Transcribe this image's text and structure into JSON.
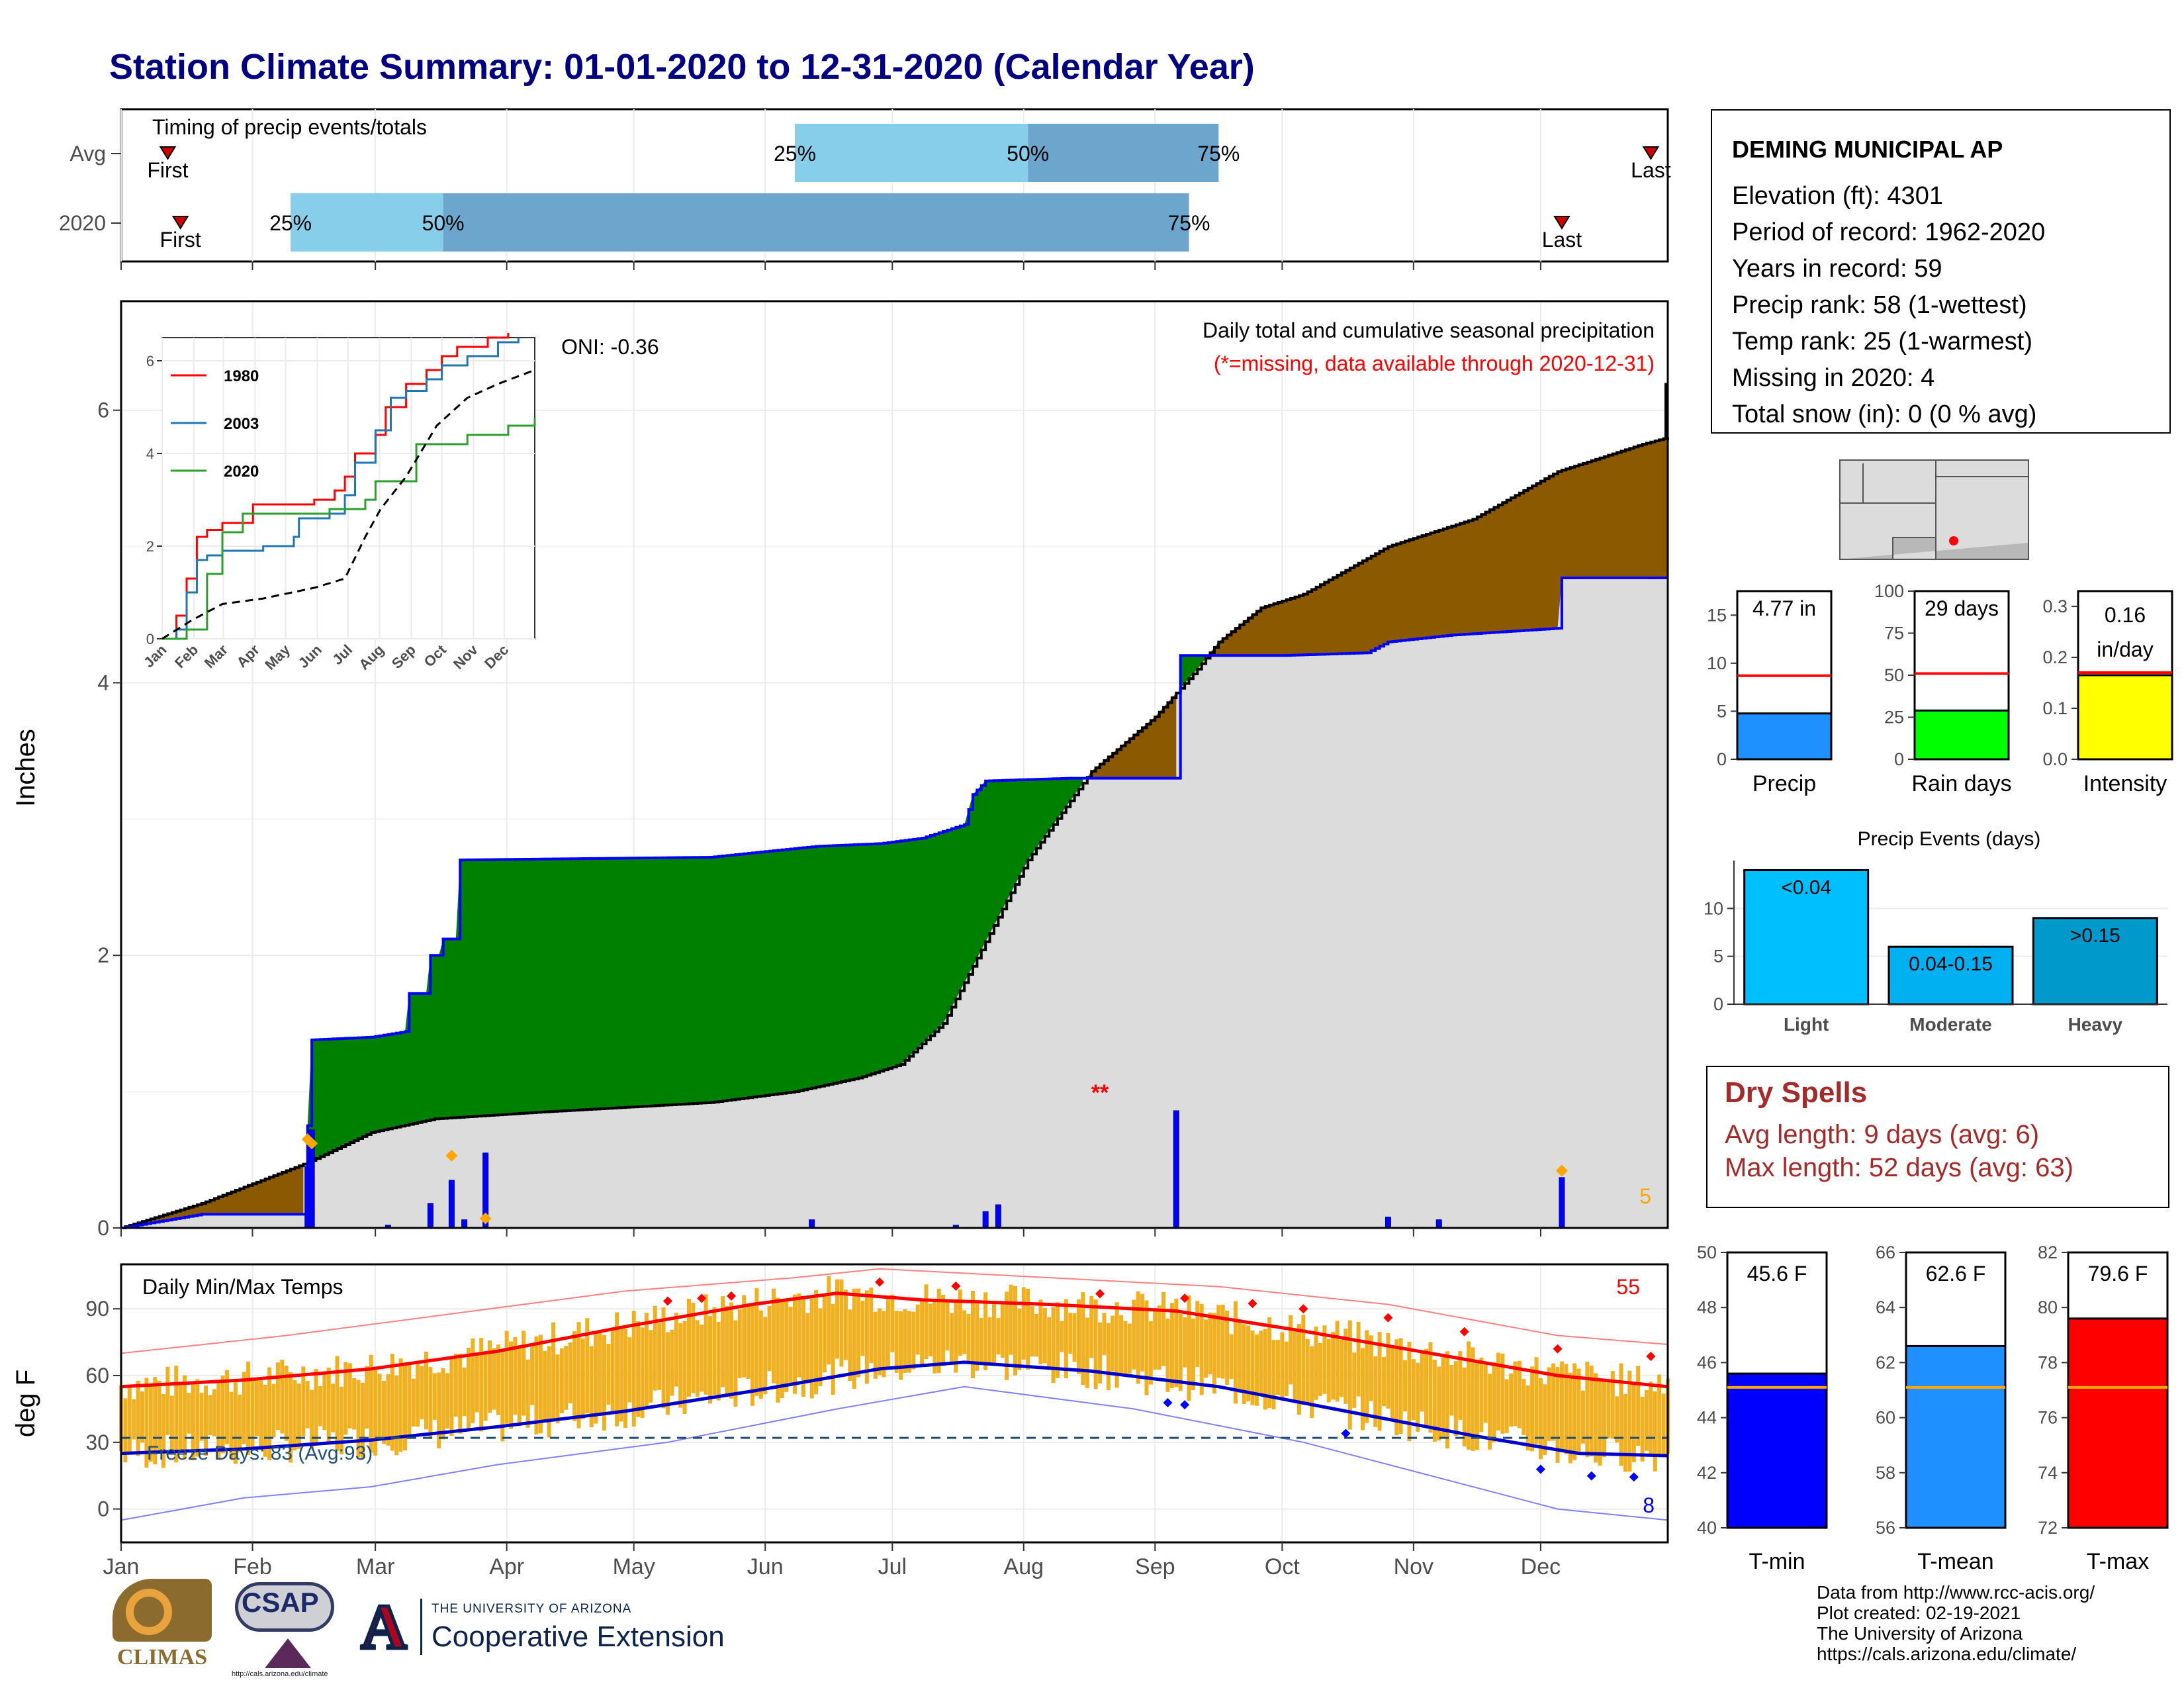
{
  "page": {
    "title": "Station Climate Summary: 01-01-2020 to 12-31-2020 (Calendar Year)"
  },
  "timing_panel": {
    "label": "Timing of precip events/totals",
    "rows": [
      {
        "name": "Avg",
        "first_doy": 12,
        "last_doy": 362,
        "p25_doy": 160,
        "p50_doy": 215,
        "p75_doy": 260,
        "labels": [
          "First",
          "Last",
          "25%",
          "50%",
          "75%"
        ]
      },
      {
        "name": "2020",
        "first_doy": 15,
        "last_doy": 341,
        "p25_doy": 41,
        "p50_doy": 77,
        "p75_doy": 253,
        "labels": [
          "First",
          "Last",
          "25%",
          "50%",
          "75%"
        ]
      }
    ]
  },
  "month_labels": [
    "Jan",
    "Feb",
    "Mar",
    "Apr",
    "May",
    "Jun",
    "Jul",
    "Aug",
    "Sep",
    "Oct",
    "Nov",
    "Dec"
  ],
  "precip_panel": {
    "title": "Daily total and cumulative seasonal precipitation",
    "subtitle": "(*=missing, data available through 2020-12-31)",
    "ylabel": "Inches",
    "yticks": [
      "0",
      "2",
      "4",
      "6"
    ],
    "oni": "ONI: -0.36",
    "missing_marker": "**",
    "count_label": "5",
    "colors": {
      "normal": "#dcdcdc",
      "above": "#008000",
      "below": "#8B5A00",
      "line": "#0000ff",
      "daily": "#0000ff",
      "record": "#FFA500"
    }
  },
  "inset": {
    "series": [
      "1980",
      "2003",
      "2020"
    ],
    "colors": [
      "#ff0000",
      "#1f77b4",
      "#2ca02c"
    ],
    "yticks": [
      "0",
      "2",
      "4",
      "6"
    ],
    "xticks": [
      "Jan",
      "Feb",
      "Mar",
      "Apr",
      "May",
      "Jun",
      "Jul",
      "Aug",
      "Sep",
      "Oct",
      "Nov",
      "Dec"
    ]
  },
  "temp_panel": {
    "title": "Daily Min/Max Temps",
    "ylabel": "deg F",
    "yticks": [
      "0",
      "30",
      "60",
      "90"
    ],
    "freeze_label": "Freeze Days: 83 (Avg:93)",
    "max_count": "55",
    "min_count": "8"
  },
  "station": {
    "name": "DEMING MUNICIPAL AP",
    "lines": [
      "Elevation (ft): 4301",
      "Period of record: 1962-2020",
      "Years in record: 59",
      "Precip rank: 58 (1-wettest)",
      "Temp rank: 25 (1-warmest)",
      "Missing in 2020: 4",
      "Total snow (in): 0 (0 % avg)"
    ]
  },
  "gauges_precip": [
    {
      "label": "Precip",
      "value_text": "4.77 in",
      "value": 4.77,
      "avg": 8.7,
      "max": 17.5,
      "ticks": [
        "0",
        "5",
        "10",
        "15"
      ],
      "tick_vals": [
        0,
        5,
        10,
        15
      ],
      "color": "#1E90FF"
    },
    {
      "label": "Rain days",
      "value_text": "29 days",
      "value": 29,
      "avg": 51,
      "max": 100,
      "ticks": [
        "0",
        "25",
        "50",
        "75",
        "100"
      ],
      "tick_vals": [
        0,
        25,
        50,
        75,
        100
      ],
      "color": "#00FF00"
    },
    {
      "label": "Intensity",
      "value_text": "0.16 in/day",
      "value_lines": [
        "0.16",
        "in/day"
      ],
      "value": 0.165,
      "avg": 0.17,
      "max": 0.33,
      "ticks": [
        "0.0",
        "0.1",
        "0.2",
        "0.3"
      ],
      "tick_vals": [
        0,
        0.1,
        0.2,
        0.3
      ],
      "color": "#FFFF00"
    }
  ],
  "precip_events": {
    "title": "Precip Events (days)",
    "yticks": [
      "0",
      "5",
      "10"
    ],
    "bars": [
      {
        "category": "Light",
        "label": "<0.04",
        "value": 14,
        "color": "#00BFFF"
      },
      {
        "category": "Moderate",
        "label": "0.04-0.15",
        "value": 6,
        "color": "#00B0F0"
      },
      {
        "category": "Heavy",
        "label": ">0.15",
        "value": 9,
        "color": "#0099CC"
      }
    ]
  },
  "dry_spells": {
    "title": "Dry Spells",
    "avg_length": "Avg length: 9 days (avg: 6)",
    "max_length": "Max length: 52 days (avg: 63)"
  },
  "gauges_temp": [
    {
      "label": "T-min",
      "value_text": "45.6 F",
      "value": 45.6,
      "avg": 45.1,
      "min": 40,
      "max": 50,
      "ticks": [
        "40",
        "42",
        "44",
        "46",
        "48",
        "50"
      ],
      "tick_vals": [
        40,
        42,
        44,
        46,
        48,
        50
      ],
      "color": "#0000FF"
    },
    {
      "label": "T-mean",
      "value_text": "62.6 F",
      "value": 62.6,
      "avg": 61.1,
      "min": 56,
      "max": 66,
      "ticks": [
        "56",
        "58",
        "60",
        "62",
        "64",
        "66"
      ],
      "tick_vals": [
        56,
        58,
        60,
        62,
        64,
        66
      ],
      "color": "#1E90FF"
    },
    {
      "label": "T-max",
      "value_text": "79.6 F",
      "value": 79.6,
      "avg": 77.1,
      "min": 72,
      "max": 82,
      "ticks": [
        "72",
        "74",
        "76",
        "78",
        "80",
        "82"
      ],
      "tick_vals": [
        72,
        74,
        76,
        78,
        80,
        82
      ],
      "color": "#FF0000"
    }
  ],
  "credits": {
    "lines": [
      "Data from http://www.rcc-acis.org/",
      "Plot created: 02-19-2021",
      "The University of Arizona",
      "https://cals.arizona.edu/climate/"
    ]
  },
  "logos": {
    "climas": "CLIMAS",
    "csap": "CSAP",
    "csap_url": "http://cals.arizona.edu/climate",
    "ua_small": "THE UNIVERSITY OF ARIZONA",
    "ua_big": "Cooperative Extension",
    "ua_letter": "A"
  },
  "chart_data": [
    {
      "type": "area",
      "title": "Daily total and cumulative seasonal precipitation",
      "ylabel": "Inches",
      "ylim": [
        0,
        6.8
      ],
      "x_unit": "day of year",
      "series": [
        {
          "name": "2020 cumulative",
          "points": [
            [
              1,
              0
            ],
            [
              20,
              0.1
            ],
            [
              44,
              0.1
            ],
            [
              45,
              0.75
            ],
            [
              46,
              1.38
            ],
            [
              60,
              1.4
            ],
            [
              68,
              1.44
            ],
            [
              68,
              1.72
            ],
            [
              73,
              1.72
            ],
            [
              73,
              2.0
            ],
            [
              76,
              2.0
            ],
            [
              76,
              2.12
            ],
            [
              80,
              2.12
            ],
            [
              80,
              2.7
            ],
            [
              140,
              2.72
            ],
            [
              165,
              2.8
            ],
            [
              180,
              2.82
            ],
            [
              190,
              2.86
            ],
            [
              200,
              2.96
            ],
            [
              202,
              3.18
            ],
            [
              205,
              3.28
            ],
            [
              225,
              3.3
            ],
            [
              230,
              3.3
            ],
            [
              250,
              3.3
            ],
            [
              251,
              4.2
            ],
            [
              265,
              4.2
            ],
            [
              275,
              4.2
            ],
            [
              295,
              4.22
            ],
            [
              300,
              4.3
            ],
            [
              315,
              4.35
            ],
            [
              340,
              4.4
            ],
            [
              341,
              4.77
            ],
            [
              366,
              4.77
            ]
          ]
        },
        {
          "name": "Normal cumulative",
          "points": [
            [
              1,
              0
            ],
            [
              20,
              0.18
            ],
            [
              45,
              0.48
            ],
            [
              60,
              0.7
            ],
            [
              75,
              0.8
            ],
            [
              100,
              0.85
            ],
            [
              140,
              0.92
            ],
            [
              160,
              1.0
            ],
            [
              175,
              1.1
            ],
            [
              185,
              1.2
            ],
            [
              195,
              1.5
            ],
            [
              205,
              2.1
            ],
            [
              215,
              2.7
            ],
            [
              230,
              3.35
            ],
            [
              245,
              3.75
            ],
            [
              255,
              4.1
            ],
            [
              260,
              4.3
            ],
            [
              270,
              4.55
            ],
            [
              280,
              4.65
            ],
            [
              300,
              5.0
            ],
            [
              320,
              5.2
            ],
            [
              340,
              5.55
            ],
            [
              360,
              5.75
            ],
            [
              366,
              5.8
            ]
          ]
        }
      ],
      "daily_precip": [
        [
          45,
          0.45
        ],
        [
          46,
          0.72
        ],
        [
          64,
          0.02
        ],
        [
          74,
          0.18
        ],
        [
          79,
          0.35
        ],
        [
          82,
          0.06
        ],
        [
          87,
          0.55
        ],
        [
          164,
          0.06
        ],
        [
          198,
          0.02
        ],
        [
          205,
          0.12
        ],
        [
          208,
          0.17
        ],
        [
          250,
          0.86
        ],
        [
          300,
          0.08
        ],
        [
          312,
          0.06
        ],
        [
          341,
          0.37
        ]
      ]
    },
    {
      "type": "line",
      "title": "",
      "ylim": [
        0,
        6.5
      ],
      "series": [
        {
          "name": "1980",
          "points": [
            [
              1,
              0
            ],
            [
              15,
              0.5
            ],
            [
              25,
              1.3
            ],
            [
              35,
              2.2
            ],
            [
              45,
              2.35
            ],
            [
              60,
              2.5
            ],
            [
              90,
              2.9
            ],
            [
              150,
              3.0
            ],
            [
              170,
              3.2
            ],
            [
              180,
              3.5
            ],
            [
              190,
              4.0
            ],
            [
              210,
              4.4
            ],
            [
              220,
              5.0
            ],
            [
              240,
              5.5
            ],
            [
              260,
              5.8
            ],
            [
              275,
              6.1
            ],
            [
              290,
              6.3
            ],
            [
              320,
              6.5
            ],
            [
              340,
              6.6
            ]
          ]
        },
        {
          "name": "2003",
          "points": [
            [
              1,
              0
            ],
            [
              15,
              0.2
            ],
            [
              25,
              1.0
            ],
            [
              35,
              1.7
            ],
            [
              45,
              1.8
            ],
            [
              60,
              1.9
            ],
            [
              100,
              2.0
            ],
            [
              130,
              2.2
            ],
            [
              135,
              2.6
            ],
            [
              165,
              2.7
            ],
            [
              180,
              3.1
            ],
            [
              190,
              3.8
            ],
            [
              210,
              4.5
            ],
            [
              225,
              5.2
            ],
            [
              240,
              5.35
            ],
            [
              260,
              5.6
            ],
            [
              275,
              5.9
            ],
            [
              300,
              6.1
            ],
            [
              330,
              6.4
            ],
            [
              350,
              6.5
            ]
          ]
        },
        {
          "name": "2020",
          "points": [
            [
              1,
              0
            ],
            [
              25,
              0.2
            ],
            [
              45,
              1.4
            ],
            [
              60,
              2.3
            ],
            [
              80,
              2.7
            ],
            [
              165,
              2.8
            ],
            [
              200,
              3.0
            ],
            [
              210,
              3.4
            ],
            [
              250,
              4.2
            ],
            [
              300,
              4.4
            ],
            [
              340,
              4.6
            ],
            [
              366,
              4.77
            ]
          ]
        },
        {
          "name": "Avg",
          "points": [
            [
              1,
              0
            ],
            [
              30,
              0.4
            ],
            [
              60,
              0.75
            ],
            [
              100,
              0.87
            ],
            [
              150,
              1.1
            ],
            [
              180,
              1.3
            ],
            [
              200,
              2.2
            ],
            [
              215,
              2.8
            ],
            [
              240,
              3.5
            ],
            [
              270,
              4.6
            ],
            [
              300,
              5.2
            ],
            [
              330,
              5.5
            ],
            [
              366,
              5.8
            ]
          ]
        }
      ]
    },
    {
      "type": "line",
      "title": "Daily Min/Max Temps",
      "ylabel": "deg F",
      "ylim": [
        -15,
        110
      ],
      "series": [
        {
          "name": "Avg max",
          "points": [
            [
              1,
              55
            ],
            [
              30,
              58
            ],
            [
              60,
              63
            ],
            [
              90,
              71
            ],
            [
              120,
              82
            ],
            [
              150,
              92
            ],
            [
              170,
              97
            ],
            [
              190,
              94
            ],
            [
              220,
              92
            ],
            [
              250,
              89
            ],
            [
              280,
              80
            ],
            [
              310,
              70
            ],
            [
              340,
              60
            ],
            [
              366,
              55
            ]
          ]
        },
        {
          "name": "Avg min",
          "points": [
            [
              1,
              25
            ],
            [
              30,
              27
            ],
            [
              60,
              31
            ],
            [
              90,
              37
            ],
            [
              120,
              44
            ],
            [
              150,
              53
            ],
            [
              180,
              63
            ],
            [
              200,
              66
            ],
            [
              230,
              62
            ],
            [
              260,
              55
            ],
            [
              290,
              44
            ],
            [
              320,
              33
            ],
            [
              345,
              25
            ],
            [
              366,
              24
            ]
          ]
        },
        {
          "name": "Record max",
          "points": [
            [
              1,
              70
            ],
            [
              40,
              78
            ],
            [
              80,
              88
            ],
            [
              120,
              98
            ],
            [
              160,
              104
            ],
            [
              180,
              108
            ],
            [
              220,
              104
            ],
            [
              260,
              100
            ],
            [
              300,
              92
            ],
            [
              340,
              78
            ],
            [
              366,
              74
            ]
          ]
        },
        {
          "name": "Record min",
          "points": [
            [
              1,
              -5
            ],
            [
              30,
              5
            ],
            [
              60,
              10
            ],
            [
              90,
              20
            ],
            [
              130,
              30
            ],
            [
              170,
              45
            ],
            [
              200,
              55
            ],
            [
              240,
              45
            ],
            [
              280,
              30
            ],
            [
              310,
              15
            ],
            [
              340,
              0
            ],
            [
              366,
              -5
            ]
          ]
        }
      ],
      "freeze_threshold": 32
    }
  ]
}
